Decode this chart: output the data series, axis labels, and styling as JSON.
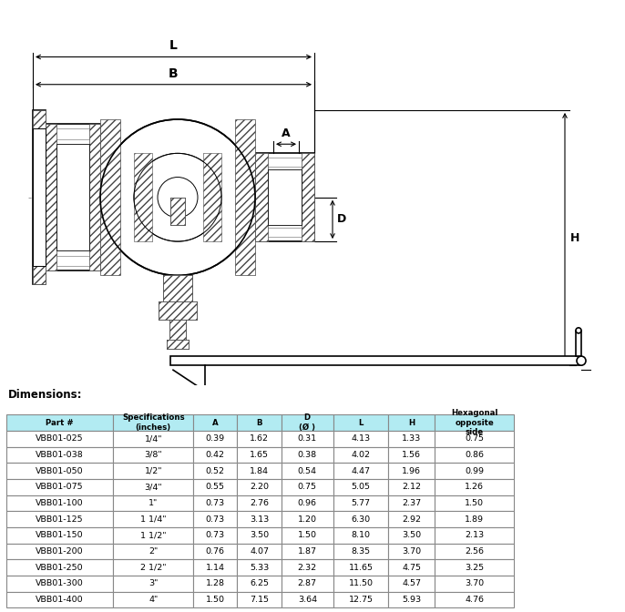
{
  "title": "Dimensions:",
  "table_header": [
    "Part #",
    "Specifications\n(inches)",
    "A",
    "B",
    "D\n(Ø )",
    "L",
    "H",
    "Hexagonal\nopposite\nside"
  ],
  "table_data": [
    [
      "VBB01-025",
      "1/4\"",
      "0.39",
      "1.62",
      "0.31",
      "4.13",
      "1.33",
      "0.75"
    ],
    [
      "VBB01-038",
      "3/8\"",
      "0.42",
      "1.65",
      "0.38",
      "4.02",
      "1.56",
      "0.86"
    ],
    [
      "VBB01-050",
      "1/2\"",
      "0.52",
      "1.84",
      "0.54",
      "4.47",
      "1.96",
      "0.99"
    ],
    [
      "VBB01-075",
      "3/4\"",
      "0.55",
      "2.20",
      "0.75",
      "5.05",
      "2.12",
      "1.26"
    ],
    [
      "VBB01-100",
      "1\"",
      "0.73",
      "2.76",
      "0.96",
      "5.77",
      "2.37",
      "1.50"
    ],
    [
      "VBB01-125",
      "1 1/4\"",
      "0.73",
      "3.13",
      "1.20",
      "6.30",
      "2.92",
      "1.89"
    ],
    [
      "VBB01-150",
      "1 1/2\"",
      "0.73",
      "3.50",
      "1.50",
      "8.10",
      "3.50",
      "2.13"
    ],
    [
      "VBB01-200",
      "2\"",
      "0.76",
      "4.07",
      "1.87",
      "8.35",
      "3.70",
      "2.56"
    ],
    [
      "VBB01-250",
      "2 1/2\"",
      "1.14",
      "5.33",
      "2.32",
      "11.65",
      "4.75",
      "3.25"
    ],
    [
      "VBB01-300",
      "3\"",
      "1.28",
      "6.25",
      "2.87",
      "11.50",
      "4.57",
      "3.70"
    ],
    [
      "VBB01-400",
      "4\"",
      "1.50",
      "7.15",
      "3.64",
      "12.75",
      "5.93",
      "4.76"
    ]
  ],
  "header_bg": "#b2ebf2",
  "border_color": "#888888",
  "figure_bg": "#ffffff"
}
